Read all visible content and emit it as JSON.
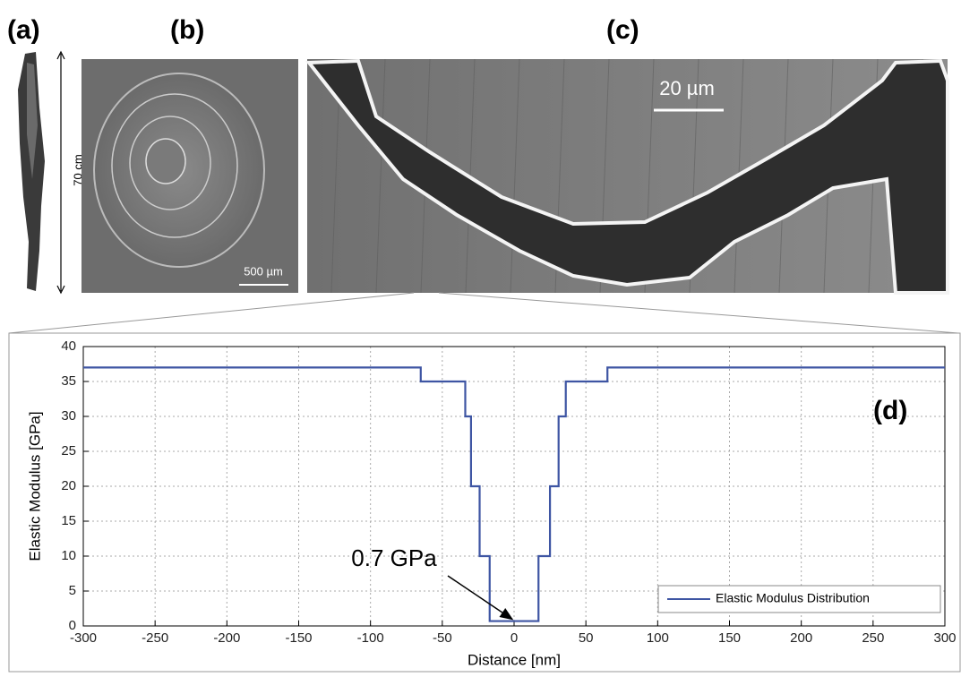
{
  "panels": {
    "a": {
      "label": "(a)",
      "scale": "70 cm"
    },
    "b": {
      "label": "(b)",
      "scale": "500 µm"
    },
    "c": {
      "label": "(c)",
      "scale": "20 µm"
    }
  },
  "chart_data": {
    "type": "line",
    "panel_label": "(d)",
    "x_label": "Distance [nm]",
    "y_label": "Elastic Modulus [GPa]",
    "x": [
      -300,
      -65,
      -65,
      -34,
      -34,
      -30,
      -30,
      -24,
      -24,
      -17,
      -17,
      17,
      17,
      25,
      25,
      31,
      31,
      36,
      36,
      65,
      65,
      300
    ],
    "series": [
      {
        "name": "Elastic Modulus Distribution",
        "color": "#3e55a3",
        "values": [
          37,
          37,
          35,
          35,
          30,
          30,
          20,
          20,
          10,
          10,
          0.7,
          0.7,
          10,
          10,
          20,
          20,
          30,
          30,
          35,
          35,
          37,
          37
        ]
      }
    ],
    "annotation": "0.7 GPa",
    "xlim": [
      -300,
      300
    ],
    "xticks": [
      -300,
      -250,
      -200,
      -150,
      -100,
      -50,
      0,
      50,
      100,
      150,
      200,
      250,
      300
    ],
    "ylim": [
      0,
      40
    ],
    "yticks": [
      0,
      5,
      10,
      15,
      20,
      25,
      30,
      35,
      40
    ],
    "grid": true,
    "legend": "lower right"
  }
}
